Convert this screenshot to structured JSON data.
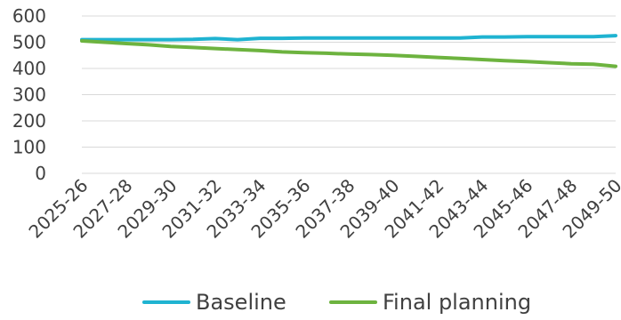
{
  "chart_data": {
    "type": "line",
    "x": [
      "2025-26",
      "2026-27",
      "2027-28",
      "2028-29",
      "2029-30",
      "2030-31",
      "2031-32",
      "2032-33",
      "2033-34",
      "2034-35",
      "2035-36",
      "2036-37",
      "2037-38",
      "2038-39",
      "2039-40",
      "2040-41",
      "2041-42",
      "2042-43",
      "2043-44",
      "2044-45",
      "2045-46",
      "2046-47",
      "2047-48",
      "2048-49",
      "2049-50"
    ],
    "x_tick_labels": [
      "2025-26",
      "2027-28",
      "2029-30",
      "2031-32",
      "2033-34",
      "2035-36",
      "2037-38",
      "2039-40",
      "2041-42",
      "2043-44",
      "2045-46",
      "2047-48",
      "2049-50"
    ],
    "y_ticks": [
      0,
      100,
      200,
      300,
      400,
      500,
      600
    ],
    "ylim": [
      0,
      600
    ],
    "grid": true,
    "legend_position": "bottom",
    "series": [
      {
        "name": "Baseline",
        "color": "#1fb3d1",
        "values": [
          510,
          510,
          510,
          510,
          510,
          511,
          514,
          510,
          515,
          515,
          516,
          516,
          516,
          516,
          516,
          516,
          516,
          516,
          520,
          520,
          521,
          521,
          521,
          521,
          525
        ]
      },
      {
        "name": "Final planning",
        "color": "#6db33f",
        "values": [
          505,
          500,
          495,
          490,
          484,
          480,
          476,
          472,
          468,
          463,
          460,
          458,
          455,
          453,
          450,
          446,
          442,
          438,
          434,
          430,
          426,
          422,
          418,
          416,
          408
        ]
      }
    ]
  }
}
